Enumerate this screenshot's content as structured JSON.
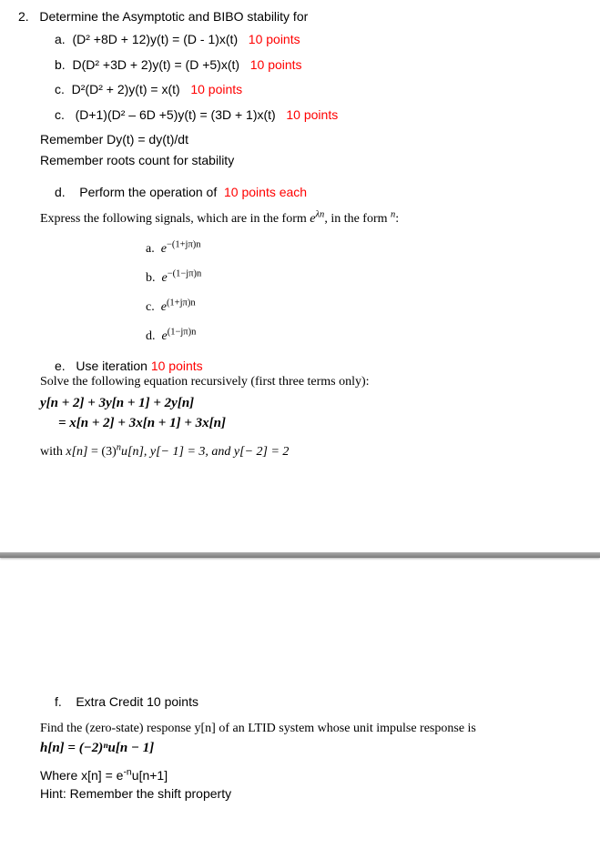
{
  "question": {
    "number": "2.",
    "title": "Determine the Asymptotic and BIBO stability for"
  },
  "parts": {
    "a": {
      "label": "a.",
      "eq": "(D² +8D + 12)y(t) = (D - 1)x(t)",
      "pts": "10 points"
    },
    "b": {
      "label": "b.",
      "eq": "D(D² +3D + 2)y(t) = (D +5)x(t)",
      "pts": "10 points"
    },
    "c1": {
      "label": "c.",
      "eq": "D²(D² + 2)y(t) = x(t)",
      "pts": "10 points"
    },
    "c2": {
      "label": "c.",
      "eq": "(D+1)(D² – 6D +5)y(t) = (3D + 1)x(t)",
      "pts": "10 points"
    }
  },
  "notes": {
    "n1": "Remember Dy(t) = dy(t)/dt",
    "n2": "Remember roots count for stability"
  },
  "partD": {
    "label": "d.",
    "text": "Perform the operation of",
    "pts": "10 points each",
    "express_pre": "Express the following signals, which are in the form ",
    "express_mid": ", in the form ",
    "express_end": ":",
    "items": {
      "a": {
        "label": "a.",
        "exp_pre": "e",
        "exp_sup": "−(1+jπ)n"
      },
      "b": {
        "label": "b.",
        "exp_pre": "e",
        "exp_sup": "−(1−jπ)n"
      },
      "c": {
        "label": "c.",
        "exp_pre": "e",
        "exp_sup": "(1+jπ)n"
      },
      "d": {
        "label": "d.",
        "exp_pre": "e",
        "exp_sup": "(1−jπ)n"
      }
    }
  },
  "partE": {
    "label": "e.",
    "text": "Use iteration",
    "pts": "10 points",
    "solve": "Solve the following equation recursively (first three terms only):",
    "eq1": "y[n + 2] + 3y[n + 1] + 2y[n]",
    "eq2": "= x[n + 2] + 3x[n + 1] + 3x[n]",
    "with_pre": "with ",
    "with_mid1": " = (3)",
    "with_mid2": "u[n], y[− 1] = 3, and y[− 2] = 2",
    "xn": "x[n]",
    "n_sup": "n"
  },
  "partF": {
    "label": "f.",
    "text": "Extra Credit 10 points",
    "find": "Find the (zero-state) response y[n] of an LTID system whose unit impulse response is",
    "h": "h[n] = (−2)ⁿu[n − 1]",
    "where_pre": "Where x[n] = e",
    "where_sup": "-n",
    "where_post": "u[n+1]",
    "hint": "Hint:  Remember the shift property"
  },
  "symbols": {
    "e": "e",
    "lambda_n": "λn",
    "gamma_n": "n"
  }
}
